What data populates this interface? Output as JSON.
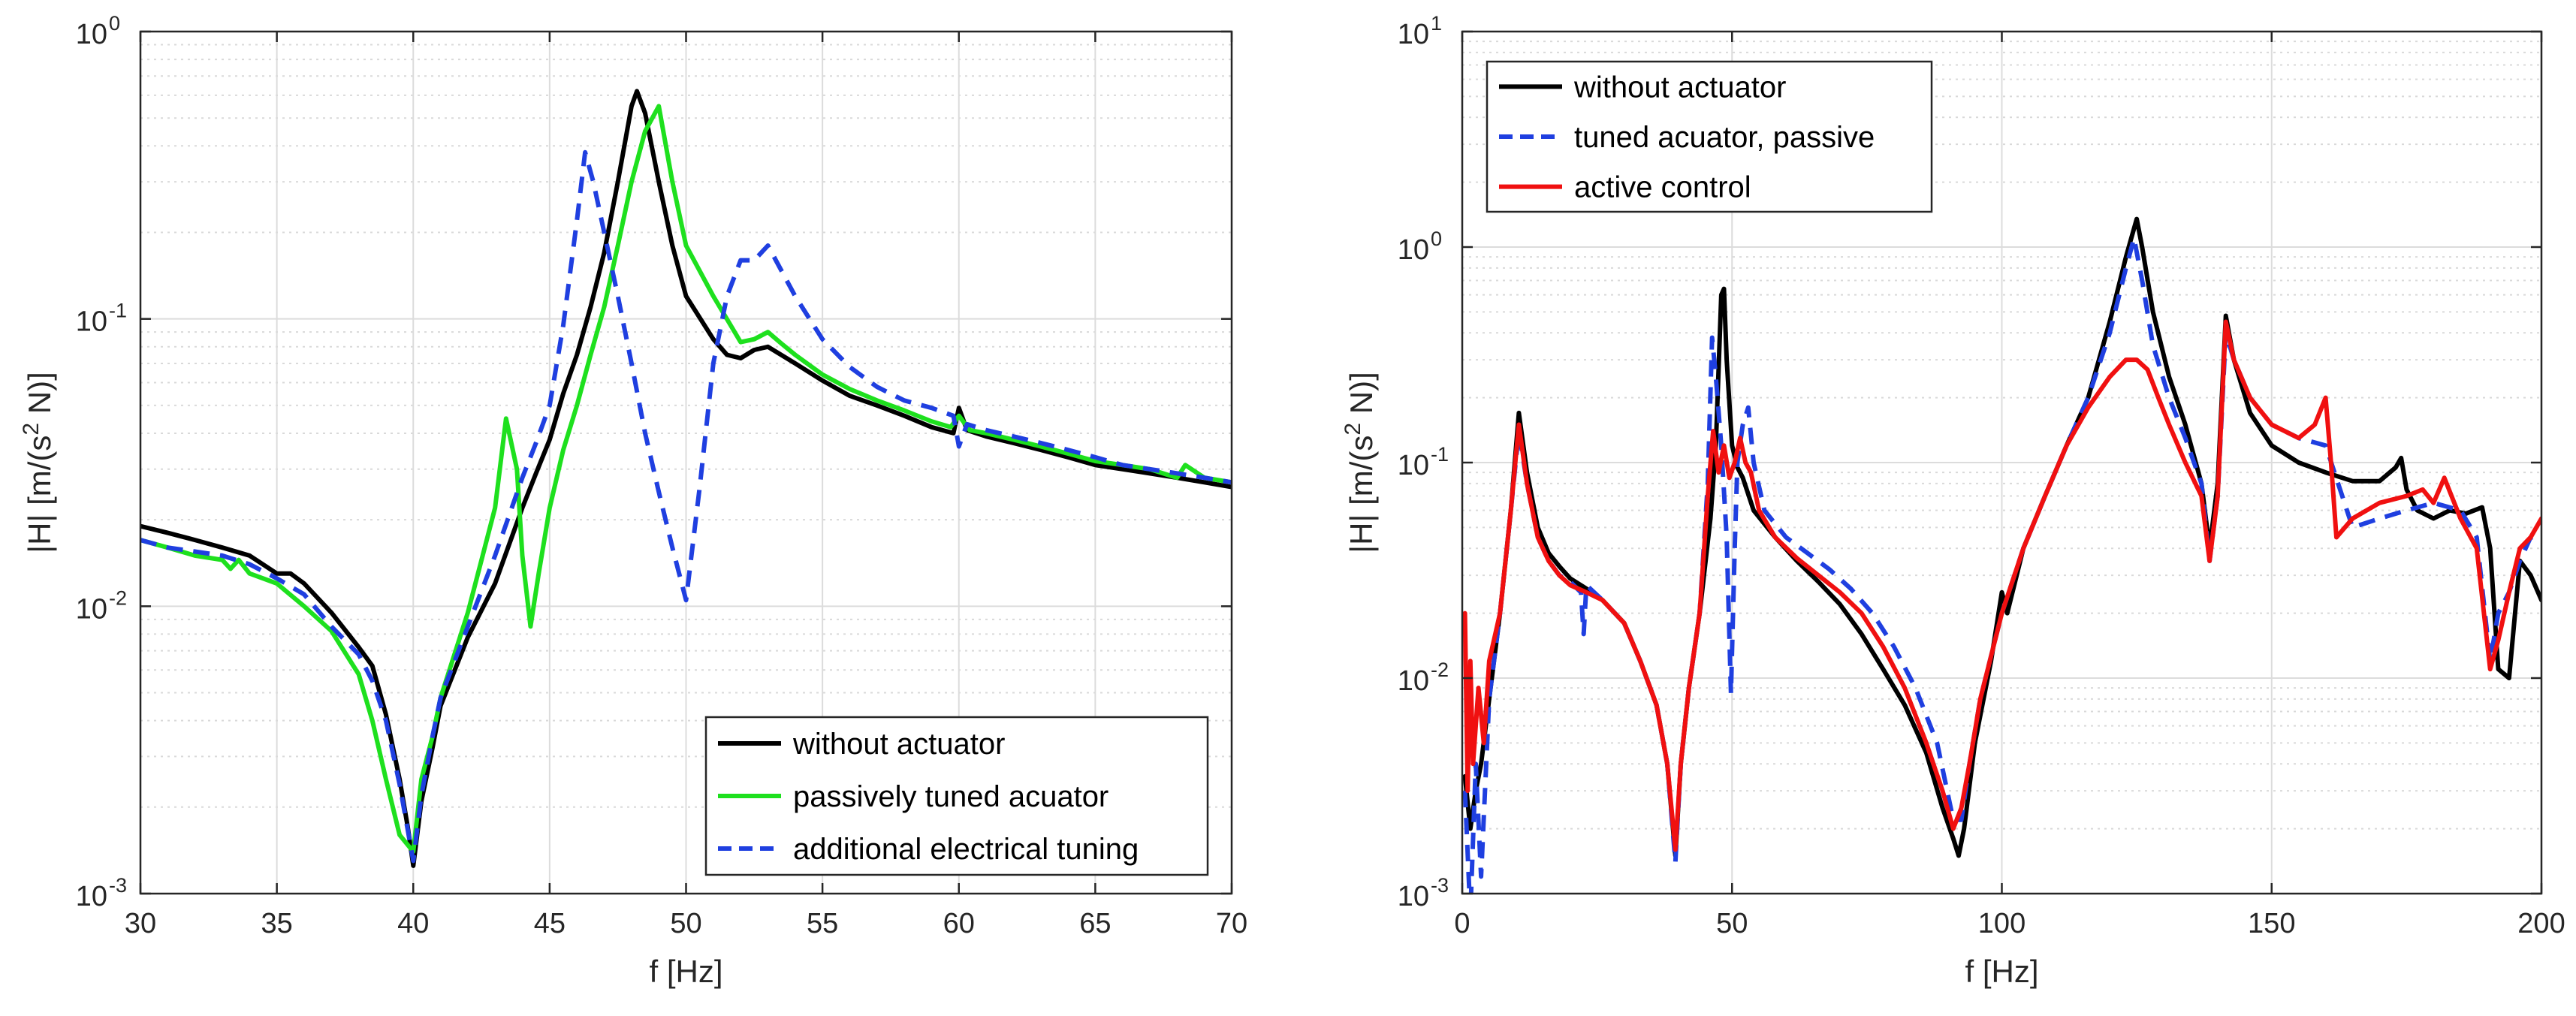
{
  "chart_data": [
    {
      "type": "line",
      "title": "",
      "xlabel": "f [Hz]",
      "ylabel": "|H| [m/(s",
      "ylabel_sup": "2",
      "ylabel_tail": " N)]",
      "xlim": [
        30,
        70
      ],
      "ylim": [
        0.001,
        1
      ],
      "yscale": "log",
      "grid": true,
      "legend_position": "bottom-right",
      "xticks": [
        30,
        35,
        40,
        45,
        50,
        55,
        60,
        65,
        70
      ],
      "xtick_labels": [
        "30",
        "35",
        "40",
        "45",
        "50",
        "55",
        "60",
        "65",
        "70"
      ],
      "yticks": [
        0.001,
        0.01,
        0.1,
        1
      ],
      "ytick_base": "10",
      "ytick_exps": [
        "-3",
        "-2",
        "-1",
        "0"
      ],
      "series": [
        {
          "name": "without actuator",
          "color": "#000000",
          "dash": "solid",
          "x": [
            30,
            31,
            32,
            33,
            34,
            35,
            35.5,
            36,
            37,
            38,
            38.5,
            39,
            39.5,
            39.8,
            40,
            40.3,
            40.7,
            41,
            42,
            43,
            44,
            44.5,
            45,
            45.5,
            46,
            46.5,
            47,
            47.5,
            48,
            48.2,
            48.5,
            49,
            49.5,
            50,
            51,
            51.5,
            52,
            52.5,
            53,
            54,
            55,
            56,
            57,
            58,
            59,
            59.8,
            60,
            60.3,
            61,
            62,
            63,
            64,
            65,
            66,
            67,
            68,
            69,
            70
          ],
          "y": [
            0.019,
            0.018,
            0.017,
            0.016,
            0.015,
            0.013,
            0.013,
            0.012,
            0.0095,
            0.0072,
            0.0062,
            0.0042,
            0.0025,
            0.0017,
            0.00125,
            0.0021,
            0.0032,
            0.0045,
            0.0078,
            0.012,
            0.022,
            0.029,
            0.038,
            0.055,
            0.075,
            0.11,
            0.17,
            0.3,
            0.55,
            0.62,
            0.52,
            0.3,
            0.18,
            0.12,
            0.085,
            0.075,
            0.073,
            0.078,
            0.08,
            0.07,
            0.061,
            0.054,
            0.05,
            0.046,
            0.042,
            0.04,
            0.049,
            0.041,
            0.039,
            0.037,
            0.035,
            0.033,
            0.031,
            0.03,
            0.029,
            0.028,
            0.027,
            0.026
          ]
        },
        {
          "name": "passively tuned acuator",
          "color": "#1ee01e",
          "dash": "solid",
          "x": [
            30,
            31,
            32,
            33,
            33.3,
            33.6,
            34,
            35,
            36,
            37,
            38,
            38.5,
            39,
            39.5,
            40,
            40.3,
            40.7,
            41,
            42,
            43,
            43.4,
            43.8,
            44,
            44.3,
            44.6,
            45,
            45.5,
            46,
            46.5,
            47,
            47.5,
            48,
            48.5,
            49,
            49.5,
            50,
            51,
            52,
            52.5,
            53,
            53.5,
            54,
            55,
            56,
            57,
            58,
            59,
            59.7,
            60,
            60.4,
            61,
            62,
            63,
            64,
            65,
            66,
            67,
            68,
            68.3,
            69,
            70
          ],
          "y": [
            0.017,
            0.016,
            0.015,
            0.0145,
            0.0135,
            0.0145,
            0.013,
            0.012,
            0.01,
            0.0082,
            0.0058,
            0.004,
            0.0025,
            0.0016,
            0.0014,
            0.0025,
            0.0035,
            0.0048,
            0.0095,
            0.022,
            0.045,
            0.03,
            0.015,
            0.0085,
            0.013,
            0.022,
            0.035,
            0.05,
            0.075,
            0.11,
            0.18,
            0.3,
            0.45,
            0.55,
            0.3,
            0.18,
            0.12,
            0.083,
            0.085,
            0.09,
            0.082,
            0.075,
            0.064,
            0.057,
            0.052,
            0.048,
            0.044,
            0.042,
            0.046,
            0.041,
            0.04,
            0.038,
            0.036,
            0.034,
            0.032,
            0.031,
            0.03,
            0.028,
            0.031,
            0.028,
            0.027
          ]
        },
        {
          "name": "additional electrical tuning",
          "color": "#1f3fe0",
          "dash": "dashed",
          "x": [
            30,
            31,
            32,
            33,
            34,
            35,
            36,
            37,
            38,
            38.5,
            39,
            39.5,
            40,
            40.3,
            40.7,
            41,
            42,
            43,
            44,
            44.5,
            45,
            45.5,
            46,
            46.3,
            46.6,
            47,
            47.5,
            48,
            48.5,
            49,
            49.5,
            50,
            50.5,
            51,
            51.5,
            52,
            52.5,
            53,
            54,
            55,
            56,
            57,
            58,
            59,
            59.8,
            60,
            60.3,
            61,
            62,
            63,
            64,
            65,
            66,
            67,
            68,
            69,
            70
          ],
          "y": [
            0.017,
            0.016,
            0.0155,
            0.015,
            0.014,
            0.0125,
            0.011,
            0.0085,
            0.0068,
            0.0055,
            0.004,
            0.0024,
            0.0013,
            0.0022,
            0.0035,
            0.0048,
            0.0085,
            0.015,
            0.028,
            0.037,
            0.05,
            0.095,
            0.22,
            0.38,
            0.3,
            0.2,
            0.12,
            0.07,
            0.04,
            0.025,
            0.016,
            0.0105,
            0.026,
            0.07,
            0.12,
            0.16,
            0.16,
            0.18,
            0.12,
            0.085,
            0.068,
            0.058,
            0.052,
            0.049,
            0.046,
            0.036,
            0.043,
            0.041,
            0.039,
            0.037,
            0.035,
            0.033,
            0.031,
            0.03,
            0.029,
            0.028,
            0.027
          ]
        }
      ]
    },
    {
      "type": "line",
      "title": "",
      "xlabel": "f [Hz]",
      "ylabel": "|H| [m/(s",
      "ylabel_sup": "2",
      "ylabel_tail": " N)]",
      "xlim": [
        0,
        200
      ],
      "ylim": [
        0.001,
        10
      ],
      "yscale": "log",
      "grid": true,
      "legend_position": "top-left",
      "xticks": [
        0,
        50,
        100,
        150,
        200
      ],
      "xtick_labels": [
        "0",
        "50",
        "100",
        "150",
        "200"
      ],
      "yticks": [
        0.001,
        0.01,
        0.1,
        1,
        10
      ],
      "ytick_base": "10",
      "ytick_exps": [
        "-3",
        "-2",
        "-1",
        "0",
        "1"
      ],
      "series": [
        {
          "name": "without actuator",
          "color": "#000000",
          "dash": "solid",
          "x": [
            0.5,
            1.5,
            2.5,
            3.5,
            5,
            7,
            9,
            10.5,
            12,
            14,
            16,
            18,
            20,
            23,
            26,
            30,
            33,
            36,
            38,
            39.5,
            40.5,
            42,
            44,
            46,
            47,
            48,
            48.5,
            49,
            50,
            51,
            52,
            54,
            58,
            62,
            66,
            70,
            74,
            78,
            82,
            86,
            89,
            91,
            92,
            93,
            95,
            98,
            100,
            101,
            104,
            108,
            112,
            116,
            120,
            123,
            125,
            126,
            128,
            131,
            134,
            137,
            138.5,
            140,
            141.5,
            143,
            146,
            150,
            155,
            160,
            165,
            170,
            173,
            174,
            175,
            177,
            180,
            183,
            186,
            189,
            190.5,
            192,
            194,
            196,
            198,
            200
          ],
          "y": [
            0.0035,
            0.002,
            0.003,
            0.004,
            0.008,
            0.02,
            0.06,
            0.17,
            0.09,
            0.05,
            0.038,
            0.033,
            0.029,
            0.026,
            0.023,
            0.018,
            0.012,
            0.0075,
            0.004,
            0.0015,
            0.004,
            0.009,
            0.02,
            0.055,
            0.12,
            0.6,
            0.64,
            0.3,
            0.12,
            0.095,
            0.085,
            0.06,
            0.045,
            0.035,
            0.028,
            0.022,
            0.016,
            0.011,
            0.0075,
            0.0045,
            0.0025,
            0.0018,
            0.0015,
            0.002,
            0.005,
            0.012,
            0.025,
            0.02,
            0.04,
            0.07,
            0.12,
            0.2,
            0.45,
            0.9,
            1.35,
            1.0,
            0.5,
            0.25,
            0.15,
            0.08,
            0.04,
            0.08,
            0.48,
            0.3,
            0.17,
            0.12,
            0.1,
            0.09,
            0.082,
            0.082,
            0.095,
            0.105,
            0.075,
            0.06,
            0.055,
            0.06,
            0.058,
            0.062,
            0.04,
            0.011,
            0.01,
            0.035,
            0.03,
            0.023
          ]
        },
        {
          "name": "tuned acuator, passive",
          "color": "#1f3fe0",
          "dash": "dashed",
          "x": [
            0.5,
            1.5,
            2.5,
            3.5,
            5,
            7,
            9,
            10.5,
            12,
            14,
            16,
            18,
            20,
            22,
            22.5,
            23,
            26,
            30,
            33,
            36,
            38,
            39.5,
            40.5,
            42,
            44,
            45.5,
            46.3,
            47,
            48,
            49,
            49.8,
            50.5,
            51,
            52,
            53,
            54,
            56,
            60,
            64,
            68,
            72,
            76,
            80,
            84,
            88,
            91,
            92.5,
            94,
            96,
            100,
            104,
            108,
            112,
            116,
            120,
            123,
            124.5,
            126,
            128,
            131,
            134,
            137,
            138.5,
            140,
            141.5,
            143,
            146,
            150,
            155,
            160,
            165,
            170,
            175,
            180,
            185,
            188,
            190.5,
            192,
            194,
            196,
            198,
            200
          ],
          "y": [
            0.003,
            0.0008,
            0.004,
            0.0012,
            0.008,
            0.02,
            0.06,
            0.14,
            0.08,
            0.045,
            0.035,
            0.03,
            0.028,
            0.025,
            0.016,
            0.027,
            0.023,
            0.018,
            0.012,
            0.0075,
            0.004,
            0.0014,
            0.004,
            0.009,
            0.02,
            0.08,
            0.38,
            0.25,
            0.12,
            0.045,
            0.0085,
            0.04,
            0.1,
            0.15,
            0.18,
            0.1,
            0.06,
            0.045,
            0.038,
            0.032,
            0.026,
            0.02,
            0.014,
            0.009,
            0.005,
            0.0022,
            0.0022,
            0.004,
            0.008,
            0.02,
            0.04,
            0.07,
            0.12,
            0.2,
            0.4,
            0.8,
            1.1,
            0.7,
            0.35,
            0.2,
            0.13,
            0.08,
            0.035,
            0.07,
            0.4,
            0.3,
            0.2,
            0.15,
            0.13,
            0.12,
            0.05,
            0.055,
            0.06,
            0.065,
            0.06,
            0.045,
            0.012,
            0.02,
            0.025,
            0.035,
            0.045,
            0.045
          ]
        },
        {
          "name": "active control",
          "color": "#f01010",
          "dash": "solid",
          "x": [
            0.5,
            1,
            1.5,
            2,
            3,
            4,
            5,
            7,
            9,
            10.5,
            12,
            14,
            16,
            18,
            20,
            23,
            26,
            30,
            33,
            36,
            38,
            39.5,
            40.5,
            42,
            44,
            45.5,
            46.5,
            47.5,
            48.5,
            49.5,
            50.5,
            51.5,
            52.5,
            53.5,
            55,
            58,
            62,
            66,
            70,
            74,
            78,
            82,
            86,
            89,
            91,
            92.5,
            94,
            96,
            100,
            104,
            108,
            112,
            116,
            120,
            123,
            125,
            127,
            129,
            131,
            134,
            137,
            138.5,
            140,
            141.5,
            143,
            146,
            150,
            155,
            158,
            160,
            161,
            162,
            165,
            170,
            175,
            178,
            180,
            182,
            185,
            188,
            190.5,
            192,
            194,
            196,
            198,
            200
          ],
          "y": [
            0.02,
            0.003,
            0.012,
            0.004,
            0.009,
            0.005,
            0.012,
            0.02,
            0.06,
            0.15,
            0.08,
            0.045,
            0.035,
            0.03,
            0.027,
            0.025,
            0.023,
            0.018,
            0.012,
            0.0075,
            0.004,
            0.0016,
            0.004,
            0.009,
            0.02,
            0.07,
            0.14,
            0.09,
            0.12,
            0.085,
            0.1,
            0.13,
            0.1,
            0.09,
            0.06,
            0.045,
            0.036,
            0.03,
            0.025,
            0.02,
            0.014,
            0.009,
            0.005,
            0.003,
            0.002,
            0.0025,
            0.004,
            0.008,
            0.02,
            0.04,
            0.07,
            0.12,
            0.18,
            0.25,
            0.3,
            0.3,
            0.27,
            0.2,
            0.15,
            0.1,
            0.07,
            0.035,
            0.07,
            0.45,
            0.3,
            0.2,
            0.15,
            0.13,
            0.15,
            0.2,
            0.1,
            0.045,
            0.055,
            0.065,
            0.07,
            0.075,
            0.065,
            0.085,
            0.055,
            0.04,
            0.011,
            0.015,
            0.025,
            0.04,
            0.045,
            0.055
          ]
        }
      ]
    }
  ]
}
